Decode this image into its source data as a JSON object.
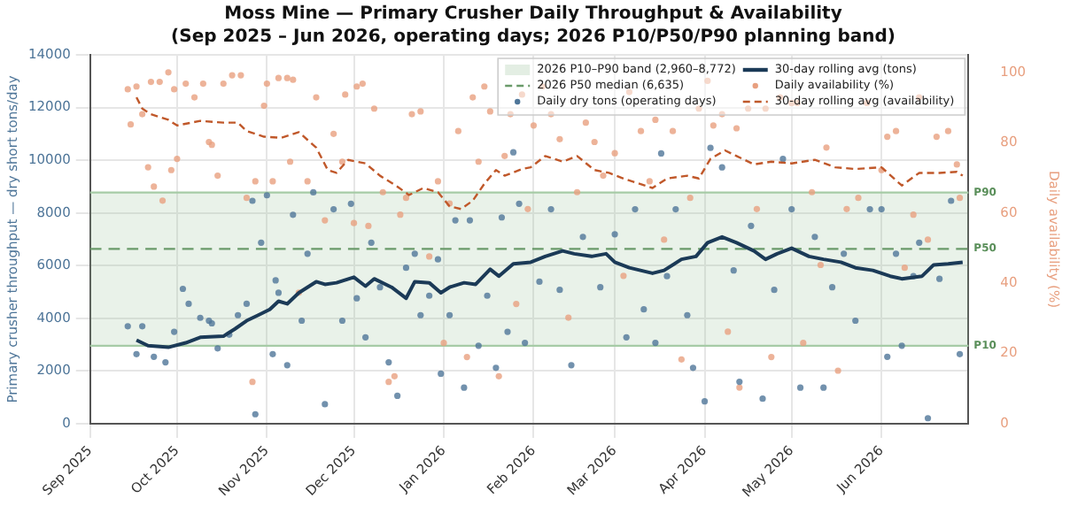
{
  "chart_data": {
    "type": "scatter",
    "title": "Moss Mine — Primary Crusher Daily Throughput & Availability",
    "subtitle": "(Sep 2025 – Jun 2026, operating days; 2026 P10/P50/P90 planning band)",
    "ylabel": "Primary crusher throughput — dry short tons/day",
    "y2label": "Daily availability (%)",
    "xlim": [
      "2025-09-01",
      "2026-07-01"
    ],
    "xticks": [
      {
        "value": "2025-09-01",
        "label": "Sep 2025"
      },
      {
        "value": "2025-10-01",
        "label": "Oct 2025"
      },
      {
        "value": "2025-11-01",
        "label": "Nov 2025"
      },
      {
        "value": "2025-12-01",
        "label": "Dec 2025"
      },
      {
        "value": "2026-01-01",
        "label": "Jan 2026"
      },
      {
        "value": "2026-02-01",
        "label": "Feb 2026"
      },
      {
        "value": "2026-03-01",
        "label": "Mar 2026"
      },
      {
        "value": "2026-04-01",
        "label": "Apr 2026"
      },
      {
        "value": "2026-05-01",
        "label": "May 2026"
      },
      {
        "value": "2026-06-01",
        "label": "Jun 2026"
      }
    ],
    "ylim": [
      0,
      14000
    ],
    "yticks": [
      0,
      2000,
      4000,
      6000,
      8000,
      10000,
      12000,
      14000
    ],
    "y2lim": [
      0,
      105
    ],
    "y2ticks": [
      0,
      20,
      40,
      60,
      80,
      100
    ],
    "grid": true,
    "legend": "top right",
    "bands": [
      {
        "axis": "y",
        "from": 2960,
        "to": 8772,
        "label": "2026 P10–P90 band (2,960–8,772)",
        "color": "#8fbc8f"
      }
    ],
    "ref_lines": [
      {
        "axis": "y",
        "value": 2960,
        "label": "P10",
        "color": "#a6cba6",
        "line_style": "solid"
      },
      {
        "axis": "y",
        "value": 6635,
        "label": "P50",
        "color": "#6a9a6a",
        "line_style": "dashed"
      },
      {
        "axis": "y",
        "value": 8772,
        "label": "P90",
        "color": "#a6cba6",
        "line_style": "solid"
      }
    ],
    "annotations": [
      "2026 P50 median (6,635)"
    ],
    "series": [
      {
        "name": "Daily dry tons (operating days)",
        "type": "scatter",
        "marker": "circle",
        "color": "#4f7699",
        "x": [
          "2025-09-14",
          "2025-09-17",
          "2025-09-19",
          "2025-09-23",
          "2025-09-27",
          "2025-09-30",
          "2025-10-03",
          "2025-10-05",
          "2025-10-09",
          "2025-10-12",
          "2025-10-13",
          "2025-10-15",
          "2025-10-19",
          "2025-10-22",
          "2025-10-25",
          "2025-10-27",
          "2025-10-28",
          "2025-10-30",
          "2025-11-01",
          "2025-11-03",
          "2025-11-04",
          "2025-11-05",
          "2025-11-08",
          "2025-11-10",
          "2025-11-13",
          "2025-11-15",
          "2025-11-17",
          "2025-11-21",
          "2025-11-24",
          "2025-11-27",
          "2025-11-30",
          "2025-12-02",
          "2025-12-05",
          "2025-12-07",
          "2025-12-10",
          "2025-12-13",
          "2025-12-16",
          "2025-12-19",
          "2025-12-22",
          "2025-12-24",
          "2025-12-27",
          "2025-12-30",
          "2025-12-31",
          "2026-01-03",
          "2026-01-05",
          "2026-01-08",
          "2026-01-10",
          "2026-01-13",
          "2026-01-16",
          "2026-01-19",
          "2026-01-21",
          "2026-01-23",
          "2026-01-25",
          "2026-01-27",
          "2026-01-29",
          "2026-02-03",
          "2026-02-07",
          "2026-02-10",
          "2026-02-14",
          "2026-02-18",
          "2026-02-24",
          "2026-03-01",
          "2026-03-05",
          "2026-03-08",
          "2026-03-11",
          "2026-03-15",
          "2026-03-17",
          "2026-03-19",
          "2026-03-22",
          "2026-03-26",
          "2026-03-28",
          "2026-04-01",
          "2026-04-03",
          "2026-04-07",
          "2026-04-11",
          "2026-04-13",
          "2026-04-17",
          "2026-04-21",
          "2026-04-25",
          "2026-04-28",
          "2026-05-01",
          "2026-05-04",
          "2026-05-09",
          "2026-05-12",
          "2026-05-15",
          "2026-05-19",
          "2026-05-23",
          "2026-05-28",
          "2026-06-01",
          "2026-06-03",
          "2026-06-06",
          "2026-06-08",
          "2026-06-12",
          "2026-06-14",
          "2026-06-17",
          "2026-06-21",
          "2026-06-25",
          "2026-06-28"
        ],
        "values": [
          3700,
          2640,
          3700,
          2540,
          2330,
          3490,
          5120,
          4550,
          4020,
          3910,
          3810,
          2860,
          3380,
          4120,
          4550,
          8460,
          360,
          6870,
          8670,
          2640,
          5440,
          4970,
          2220,
          7930,
          3910,
          6450,
          8780,
          740,
          8140,
          3910,
          8350,
          4760,
          3280,
          6870,
          5180,
          2330,
          1060,
          5920,
          6450,
          4120,
          4860,
          6240,
          1900,
          4120,
          7720,
          1370,
          7720,
          2960,
          4860,
          2120,
          7830,
          3490,
          10300,
          8350,
          3070,
          5390,
          8140,
          5080,
          2220,
          7090,
          5180,
          7190,
          3280,
          8140,
          4340,
          3070,
          10260,
          5600,
          8140,
          4120,
          2120,
          850,
          10470,
          9730,
          5820,
          1590,
          7510,
          950,
          5080,
          10050,
          8140,
          1370,
          7090,
          1370,
          5180,
          6450,
          3910,
          8140,
          8140,
          2540,
          6450,
          2960,
          5600,
          6870,
          210,
          5500,
          8460,
          2640
        ]
      },
      {
        "name": "30-day rolling avg (tons)",
        "type": "line",
        "marker": "none",
        "line_style": "solid",
        "color": "#1b3a57",
        "x": [
          "2025-09-17",
          "2025-09-21",
          "2025-09-28",
          "2025-10-04",
          "2025-10-09",
          "2025-10-17",
          "2025-10-21",
          "2025-10-25",
          "2025-10-29",
          "2025-11-02",
          "2025-11-05",
          "2025-11-08",
          "2025-11-12",
          "2025-11-18",
          "2025-11-21",
          "2025-11-25",
          "2025-12-01",
          "2025-12-05",
          "2025-12-08",
          "2025-12-14",
          "2025-12-19",
          "2025-12-22",
          "2025-12-27",
          "2025-12-31",
          "2026-01-03",
          "2026-01-08",
          "2026-01-12",
          "2026-01-17",
          "2026-01-20",
          "2026-01-25",
          "2026-01-31",
          "2026-02-05",
          "2026-02-11",
          "2026-02-15",
          "2026-02-21",
          "2026-02-26",
          "2026-03-01",
          "2026-03-06",
          "2026-03-14",
          "2026-03-18",
          "2026-03-24",
          "2026-03-29",
          "2026-04-02",
          "2026-04-07",
          "2026-04-12",
          "2026-04-18",
          "2026-04-22",
          "2026-04-26",
          "2026-05-01",
          "2026-05-07",
          "2026-05-12",
          "2026-05-18",
          "2026-05-23",
          "2026-05-29",
          "2026-06-04",
          "2026-06-08",
          "2026-06-15",
          "2026-06-19",
          "2026-06-24",
          "2026-06-29"
        ],
        "values": [
          3170,
          2960,
          2900,
          3070,
          3280,
          3320,
          3600,
          3910,
          4120,
          4340,
          4650,
          4550,
          4970,
          5390,
          5290,
          5350,
          5560,
          5220,
          5500,
          5180,
          4760,
          5390,
          5350,
          4970,
          5180,
          5350,
          5290,
          5860,
          5600,
          6070,
          6130,
          6350,
          6560,
          6450,
          6350,
          6450,
          6130,
          5920,
          5710,
          5820,
          6240,
          6350,
          6870,
          7090,
          6870,
          6560,
          6240,
          6450,
          6660,
          6350,
          6240,
          6130,
          5920,
          5820,
          5600,
          5500,
          5600,
          6030,
          6070,
          6130
        ]
      },
      {
        "name": "Daily availability (%)",
        "type": "scatter",
        "marker": "circle",
        "axis": "y2",
        "color": "#e8a080",
        "x": [
          "2025-09-14",
          "2025-09-15",
          "2025-09-17",
          "2025-09-19",
          "2025-09-21",
          "2025-09-22",
          "2025-09-23",
          "2025-09-25",
          "2025-09-26",
          "2025-09-28",
          "2025-09-29",
          "2025-09-30",
          "2025-10-01",
          "2025-10-04",
          "2025-10-07",
          "2025-10-10",
          "2025-10-12",
          "2025-10-13",
          "2025-10-15",
          "2025-10-17",
          "2025-10-20",
          "2025-10-23",
          "2025-10-25",
          "2025-10-27",
          "2025-10-28",
          "2025-10-31",
          "2025-11-01",
          "2025-11-03",
          "2025-11-05",
          "2025-11-08",
          "2025-11-09",
          "2025-11-10",
          "2025-11-12",
          "2025-11-15",
          "2025-11-18",
          "2025-11-21",
          "2025-11-24",
          "2025-11-27",
          "2025-11-28",
          "2025-12-01",
          "2025-12-02",
          "2025-12-04",
          "2025-12-06",
          "2025-12-08",
          "2025-12-11",
          "2025-12-13",
          "2025-12-15",
          "2025-12-17",
          "2025-12-19",
          "2025-12-21",
          "2025-12-24",
          "2025-12-27",
          "2025-12-30",
          "2026-01-01",
          "2026-01-03",
          "2026-01-06",
          "2026-01-09",
          "2026-01-11",
          "2026-01-13",
          "2026-01-15",
          "2026-01-17",
          "2026-01-20",
          "2026-01-22",
          "2026-01-24",
          "2026-01-26",
          "2026-01-28",
          "2026-01-30",
          "2026-02-01",
          "2026-02-04",
          "2026-02-07",
          "2026-02-10",
          "2026-02-13",
          "2026-02-16",
          "2026-02-19",
          "2026-02-22",
          "2026-02-25",
          "2026-03-01",
          "2026-03-04",
          "2026-03-06",
          "2026-03-10",
          "2026-03-13",
          "2026-03-15",
          "2026-03-18",
          "2026-03-21",
          "2026-03-24",
          "2026-03-27",
          "2026-03-30",
          "2026-04-02",
          "2026-04-04",
          "2026-04-07",
          "2026-04-09",
          "2026-04-12",
          "2026-04-13",
          "2026-04-16",
          "2026-04-19",
          "2026-04-22",
          "2026-04-24",
          "2026-04-27",
          "2026-05-01",
          "2026-05-03",
          "2026-05-05",
          "2026-05-08",
          "2026-05-11",
          "2026-05-13",
          "2026-05-17",
          "2026-05-20",
          "2026-05-24",
          "2026-05-27",
          "2026-06-01",
          "2026-06-03",
          "2026-06-06",
          "2026-06-09",
          "2026-06-12",
          "2026-06-14",
          "2026-06-17",
          "2026-06-20",
          "2026-06-24",
          "2026-06-27",
          "2026-06-28"
        ],
        "values": [
          95.2,
          85.2,
          96.0,
          88.1,
          73.0,
          97.3,
          67.5,
          97.3,
          63.5,
          100,
          72.2,
          95.2,
          75.4,
          96.8,
          92.9,
          96.8,
          80.2,
          79.4,
          70.6,
          96.8,
          99.2,
          99.2,
          64.3,
          11.9,
          69.0,
          90.5,
          96.8,
          69.0,
          98.4,
          98.4,
          74.6,
          97.9,
          37.3,
          69.0,
          92.9,
          57.9,
          82.5,
          74.6,
          93.7,
          57.1,
          96.0,
          96.8,
          56.3,
          89.7,
          65.9,
          11.9,
          13.5,
          59.5,
          64.3,
          88.1,
          88.9,
          47.6,
          69.0,
          23.0,
          62.7,
          83.3,
          19.0,
          92.9,
          74.6,
          96.0,
          88.9,
          13.5,
          76.2,
          88.1,
          34.1,
          93.7,
          61.1,
          84.9,
          96.0,
          88.1,
          81.0,
          30.2,
          65.9,
          85.7,
          80.2,
          70.6,
          77.0,
          42.1,
          94.4,
          83.3,
          69.0,
          86.5,
          52.4,
          83.3,
          18.3,
          64.3,
          89.7,
          97.6,
          84.9,
          88.1,
          26.2,
          84.1,
          10.3,
          89.7,
          61.1,
          89.7,
          19.0,
          92.9,
          91.3,
          91.3,
          23.0,
          65.9,
          45.2,
          78.6,
          15.1,
          61.1,
          64.3,
          91.3,
          72.2,
          81.7,
          83.3,
          44.4,
          59.5,
          92.9,
          52.4,
          81.7,
          83.3,
          73.8,
          64.3
        ]
      },
      {
        "name": "30-day rolling avg (availability)",
        "type": "line",
        "marker": "none",
        "line_style": "dashed",
        "axis": "y2",
        "color": "#c0582a",
        "x": [
          "2025-09-17",
          "2025-09-19",
          "2025-09-22",
          "2025-09-28",
          "2025-10-01",
          "2025-10-09",
          "2025-10-17",
          "2025-10-22",
          "2025-10-25",
          "2025-10-31",
          "2025-11-06",
          "2025-11-12",
          "2025-11-18",
          "2025-11-22",
          "2025-11-25",
          "2025-11-29",
          "2025-12-05",
          "2025-12-10",
          "2025-12-16",
          "2025-12-20",
          "2025-12-25",
          "2025-12-30",
          "2026-01-03",
          "2026-01-07",
          "2026-01-11",
          "2026-01-15",
          "2026-01-19",
          "2026-01-22",
          "2026-01-28",
          "2026-01-31",
          "2026-02-05",
          "2026-02-11",
          "2026-02-16",
          "2026-02-22",
          "2026-02-27",
          "2026-03-04",
          "2026-03-14",
          "2026-03-19",
          "2026-03-26",
          "2026-03-30",
          "2026-04-03",
          "2026-04-08",
          "2026-04-12",
          "2026-04-18",
          "2026-04-24",
          "2026-05-01",
          "2026-05-09",
          "2026-05-16",
          "2026-05-23",
          "2026-06-01",
          "2026-06-08",
          "2026-06-14",
          "2026-06-21",
          "2026-06-27",
          "2026-06-29"
        ],
        "values": [
          92.9,
          89.7,
          88.1,
          86.5,
          84.9,
          86.2,
          85.7,
          85.7,
          83.3,
          81.7,
          81.4,
          83.0,
          78.6,
          72.2,
          71.4,
          75.1,
          74.1,
          70.6,
          67.5,
          65.1,
          67.1,
          65.9,
          61.9,
          61.1,
          63.5,
          68.3,
          72.2,
          70.6,
          72.5,
          73.0,
          76.2,
          74.6,
          76.2,
          72.2,
          71.4,
          69.8,
          67.1,
          69.8,
          70.6,
          69.8,
          75.4,
          77.8,
          76.2,
          73.8,
          74.6,
          74.1,
          75.1,
          73.0,
          72.5,
          73.0,
          67.8,
          71.4,
          71.4,
          71.7,
          70.6
        ]
      }
    ]
  }
}
